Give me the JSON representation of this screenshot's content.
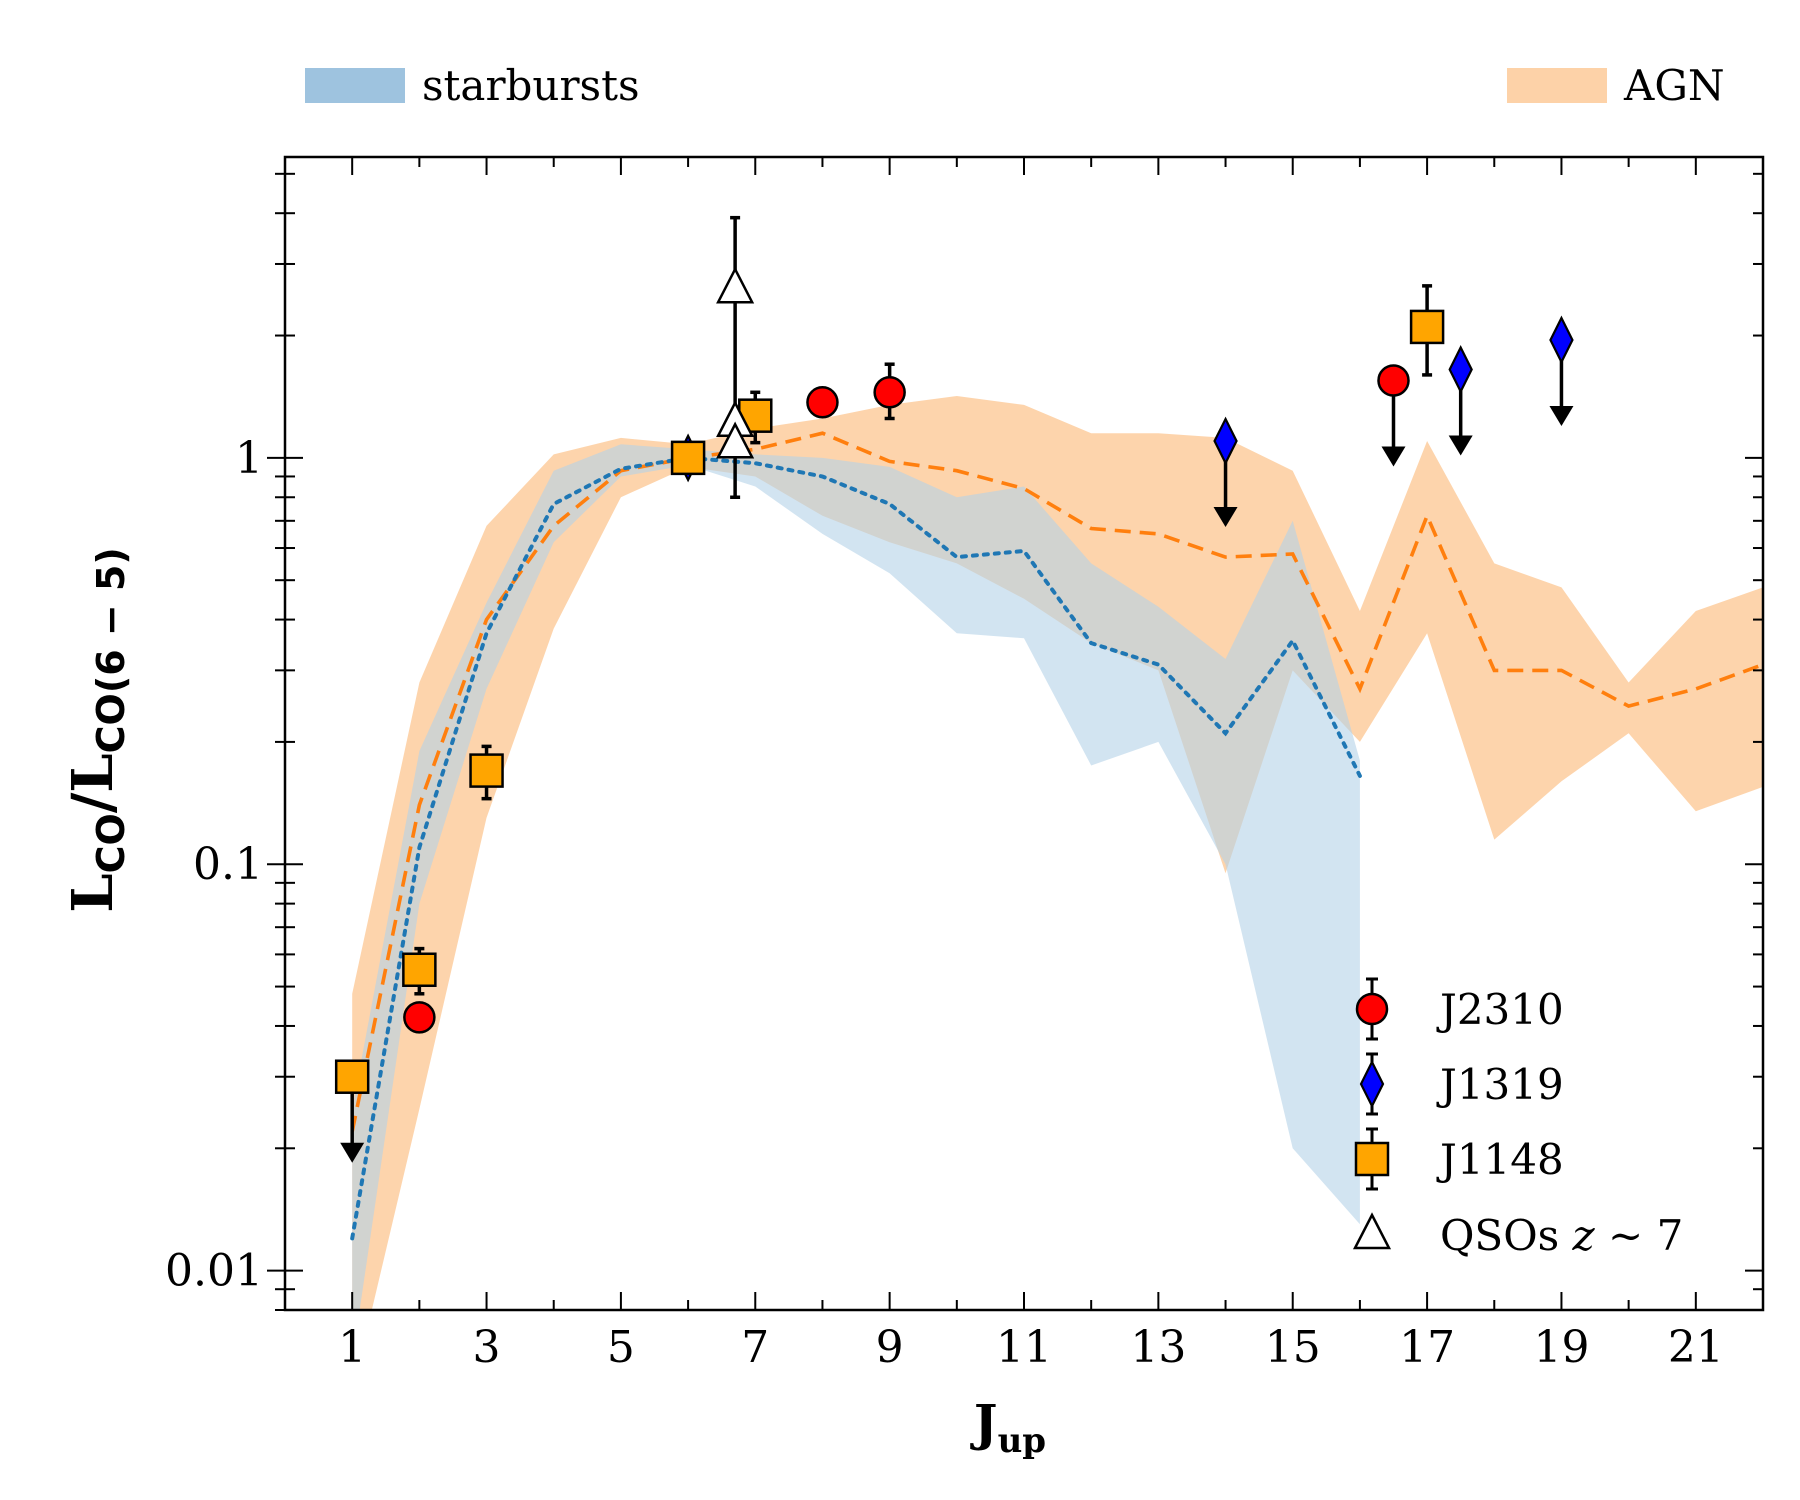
{
  "chart_data": {
    "type": "scatter",
    "title": "",
    "xlabel_main": "J",
    "xlabel_sub": "up",
    "ylabel_main": "L",
    "ylabel_sub1": "CO",
    "ylabel_slash": "/L",
    "ylabel_sub2": "CO(6 − 5)",
    "x_range": [
      0,
      22
    ],
    "y_range": [
      0.008,
      5.5
    ],
    "y_scale": "log",
    "x_ticks": [
      1,
      3,
      5,
      7,
      9,
      11,
      13,
      15,
      17,
      19,
      21
    ],
    "x_tick_labels": [
      "1",
      "3",
      "5",
      "7",
      "9",
      "11",
      "13",
      "15",
      "17",
      "19",
      "21"
    ],
    "y_ticks": [
      0.01,
      0.1,
      1
    ],
    "y_tick_labels": [
      "0.01",
      "0.1",
      "1"
    ],
    "band_legend": [
      {
        "name": "starbursts",
        "color": "#9ec3df"
      },
      {
        "name": "AGN",
        "color": "#fdd2a8"
      }
    ],
    "bands": [
      {
        "name": "AGN",
        "color": "#fdd2a8",
        "opacity": 0.95,
        "x": [
          1,
          2,
          3,
          4,
          5,
          6,
          7,
          8,
          9,
          10,
          11,
          12,
          13,
          14,
          15,
          16,
          17,
          18,
          19,
          20,
          21,
          22
        ],
        "upper": [
          0.048,
          0.28,
          0.68,
          1.02,
          1.12,
          1.08,
          1.18,
          1.25,
          1.35,
          1.42,
          1.35,
          1.15,
          1.15,
          1.12,
          0.93,
          0.42,
          1.1,
          0.55,
          0.48,
          0.28,
          0.42,
          0.48
        ],
        "lower": [
          0.005,
          0.025,
          0.13,
          0.38,
          0.8,
          0.95,
          0.9,
          0.72,
          0.62,
          0.55,
          0.45,
          0.35,
          0.3,
          0.095,
          0.3,
          0.2,
          0.37,
          0.115,
          0.16,
          0.21,
          0.135,
          0.155
        ]
      },
      {
        "name": "starbursts",
        "color": "#b4d2e7",
        "opacity": 0.6,
        "x": [
          1,
          2,
          3,
          4,
          5,
          6,
          7,
          8,
          9,
          10,
          11,
          12,
          13,
          14,
          15,
          16
        ],
        "upper": [
          0.025,
          0.19,
          0.44,
          0.93,
          1.08,
          1.05,
          1.02,
          1.0,
          0.95,
          0.8,
          0.85,
          0.55,
          0.43,
          0.32,
          0.7,
          0.18
        ],
        "lower": [
          0.006,
          0.08,
          0.27,
          0.62,
          0.9,
          0.96,
          0.85,
          0.65,
          0.52,
          0.37,
          0.36,
          0.175,
          0.2,
          0.1,
          0.02,
          0.013
        ]
      }
    ],
    "lines": [
      {
        "name": "AGN mean",
        "color": "#ff7f0e",
        "style": "dashed",
        "x": [
          1,
          2,
          3,
          4,
          5,
          6,
          7,
          8,
          9,
          10,
          11,
          12,
          13,
          14,
          15,
          16,
          17,
          18,
          19,
          20,
          21,
          22
        ],
        "y": [
          0.022,
          0.14,
          0.4,
          0.68,
          0.93,
          1.0,
          1.05,
          1.15,
          0.98,
          0.93,
          0.84,
          0.67,
          0.65,
          0.57,
          0.58,
          0.27,
          0.72,
          0.3,
          0.3,
          0.245,
          0.27,
          0.31
        ]
      },
      {
        "name": "starbursts mean",
        "color": "#1f77b4",
        "style": "dotted",
        "x": [
          1,
          2,
          3,
          4,
          5,
          6,
          7,
          8,
          9,
          10,
          11,
          12,
          13,
          14,
          15,
          16
        ],
        "y": [
          0.012,
          0.11,
          0.37,
          0.77,
          0.94,
          1.0,
          0.97,
          0.9,
          0.77,
          0.57,
          0.59,
          0.35,
          0.31,
          0.21,
          0.355,
          0.165
        ]
      }
    ],
    "series": [
      {
        "name": "J2310",
        "marker": "circle",
        "color": "#ff0000",
        "points": [
          {
            "x": 2.0,
            "y": 0.042,
            "err_up": 0.0,
            "err_down": 0.0,
            "upper_limit": false
          },
          {
            "x": 8.0,
            "y": 1.37,
            "err_up": 0.1,
            "err_down": 0.1,
            "upper_limit": false
          },
          {
            "x": 9.0,
            "y": 1.45,
            "err_up": 0.25,
            "err_down": 0.2,
            "upper_limit": false
          },
          {
            "x": 16.5,
            "y": 1.55,
            "err_up": 0.0,
            "err_down": 0.0,
            "upper_limit": true
          }
        ]
      },
      {
        "name": "J1319",
        "marker": "diamond",
        "color": "#0000ff",
        "points": [
          {
            "x": 6.0,
            "y": 1.0,
            "err_up": 0.07,
            "err_down": 0.07,
            "upper_limit": false
          },
          {
            "x": 14.0,
            "y": 1.1,
            "err_up": 0.0,
            "err_down": 0.0,
            "upper_limit": true
          },
          {
            "x": 17.5,
            "y": 1.65,
            "err_up": 0.0,
            "err_down": 0.0,
            "upper_limit": true
          },
          {
            "x": 19.0,
            "y": 1.95,
            "err_up": 0.0,
            "err_down": 0.0,
            "upper_limit": true
          }
        ]
      },
      {
        "name": "J1148",
        "marker": "square",
        "color": "#ffa500",
        "points": [
          {
            "x": 1.0,
            "y": 0.03,
            "err_up": 0.0,
            "err_down": 0.0,
            "upper_limit": true
          },
          {
            "x": 2.0,
            "y": 0.055,
            "err_up": 0.007,
            "err_down": 0.007,
            "upper_limit": false
          },
          {
            "x": 3.0,
            "y": 0.17,
            "err_up": 0.025,
            "err_down": 0.025,
            "upper_limit": false
          },
          {
            "x": 6.0,
            "y": 1.0,
            "err_up": 0.0,
            "err_down": 0.0,
            "upper_limit": false
          },
          {
            "x": 7.0,
            "y": 1.27,
            "err_up": 0.18,
            "err_down": 0.18,
            "upper_limit": false
          },
          {
            "x": 17.0,
            "y": 2.1,
            "err_up": 0.55,
            "err_down": 0.5,
            "upper_limit": false
          }
        ]
      },
      {
        "name": "QSOs z ~ 7",
        "marker": "triangle",
        "color": "#ffffff",
        "points": [
          {
            "x": 6.7,
            "y": 2.6,
            "err_up": 1.3,
            "err_down": 1.8,
            "upper_limit": false
          },
          {
            "x": 6.7,
            "y": 1.22,
            "err_up": 0.0,
            "err_down": 0.0,
            "upper_limit": false
          },
          {
            "x": 6.7,
            "y": 1.08,
            "err_up": 0.0,
            "err_down": 0.0,
            "upper_limit": false
          }
        ]
      }
    ],
    "legend": [
      {
        "name": "J2310",
        "marker": "circle",
        "color": "#ff0000"
      },
      {
        "name": "J1319",
        "marker": "diamond",
        "color": "#0000ff"
      },
      {
        "name": "J1148",
        "marker": "square",
        "color": "#ffa500"
      },
      {
        "name": "QSOs z ~ 7",
        "marker": "triangle",
        "color": "#ffffff"
      }
    ],
    "legend_label_qso_prefix": "QSOs ",
    "legend_label_qso_z": "z",
    "legend_label_qso_suffix": " ∼ 7",
    "legend_position": "lower-right",
    "band_legend_position": "top"
  }
}
